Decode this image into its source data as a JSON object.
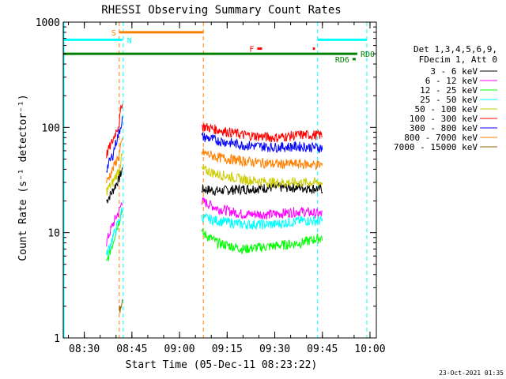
{
  "chart_data": {
    "type": "line",
    "title": "RHESSI Observing Summary Count Rates",
    "xlabel": "Start Time (05-Dec-11 08:23:22)",
    "ylabel": "Count Rate (s⁻¹ detector⁻¹)",
    "y_scale": "log",
    "ylim": [
      1,
      1000
    ],
    "xlim_minutes_clock": [
      "08:23:22",
      "10:02:00"
    ],
    "x_tick_labels": [
      "08:30",
      "08:45",
      "09:00",
      "09:15",
      "09:30",
      "09:45",
      "10:00"
    ],
    "y_tick_labels": [
      "1",
      "10",
      "100",
      "1000"
    ],
    "legend_header": [
      "Det 1,3,4,5,6,9,",
      "FDecim 1, Att 0"
    ],
    "series": [
      {
        "name": "3 - 6 keV",
        "color": "#000000",
        "segments": [
          {
            "t": [
              "08:37",
              "08:39",
              "08:41",
              "08:42"
            ],
            "y": [
              20,
              25,
              33,
              40
            ]
          },
          {
            "t": [
              "09:07",
              "09:12",
              "09:20",
              "09:30",
              "09:38",
              "09:45"
            ],
            "y": [
              26,
              25,
              26,
              27,
              27,
              26
            ]
          }
        ]
      },
      {
        "name": "6 - 12 keV",
        "color": "#ff00ff",
        "segments": [
          {
            "t": [
              "08:37",
              "08:39",
              "08:41",
              "08:42"
            ],
            "y": [
              8,
              12,
              16,
              20
            ]
          },
          {
            "t": [
              "09:07",
              "09:12",
              "09:20",
              "09:30",
              "09:38",
              "09:45"
            ],
            "y": [
              20,
              17,
              15,
              15,
              16,
              15
            ]
          }
        ]
      },
      {
        "name": "12 - 25 keV",
        "color": "#00ff00",
        "segments": [
          {
            "t": [
              "08:37",
              "08:39",
              "08:41",
              "08:42"
            ],
            "y": [
              5,
              8,
              13,
              17
            ]
          },
          {
            "t": [
              "09:07",
              "09:12",
              "09:20",
              "09:30",
              "09:38",
              "09:45"
            ],
            "y": [
              10,
              8,
              7,
              7.5,
              8,
              9
            ]
          }
        ]
      },
      {
        "name": "25 - 50 keV",
        "color": "#00ffff",
        "segments": [
          {
            "t": [
              "08:37",
              "08:39",
              "08:41",
              "08:42"
            ],
            "y": [
              6,
              9,
              13,
              17
            ]
          },
          {
            "t": [
              "09:07",
              "09:12",
              "09:20",
              "09:30",
              "09:38",
              "09:45"
            ],
            "y": [
              14,
              13,
              12,
              12,
              13,
              13
            ]
          }
        ]
      },
      {
        "name": "50 - 100 keV",
        "color": "#cccc00",
        "segments": [
          {
            "t": [
              "08:37",
              "08:39",
              "08:41",
              "08:42"
            ],
            "y": [
              25,
              30,
              40,
              55
            ]
          },
          {
            "t": [
              "09:07",
              "09:12",
              "09:20",
              "09:30",
              "09:38",
              "09:45"
            ],
            "y": [
              40,
              36,
              32,
              30,
              30,
              30
            ]
          }
        ]
      },
      {
        "name": "100 - 300 keV",
        "color": "#ff0000",
        "segments": [
          {
            "t": [
              "08:37",
              "08:39",
              "08:41",
              "08:42"
            ],
            "y": [
              55,
              75,
              110,
              180
            ]
          },
          {
            "t": [
              "09:07",
              "09:12",
              "09:20",
              "09:30",
              "09:38",
              "09:45"
            ],
            "y": [
              103,
              95,
              85,
              80,
              85,
              85
            ]
          }
        ]
      },
      {
        "name": "300 - 800 keV",
        "color": "#0000ff",
        "segments": [
          {
            "t": [
              "08:37",
              "08:39",
              "08:41",
              "08:42"
            ],
            "y": [
              40,
              55,
              90,
              120
            ]
          },
          {
            "t": [
              "09:07",
              "09:12",
              "09:20",
              "09:30",
              "09:38",
              "09:45"
            ],
            "y": [
              82,
              75,
              68,
              65,
              66,
              64
            ]
          }
        ]
      },
      {
        "name": "800 - 7000 keV",
        "color": "#ff8000",
        "segments": [
          {
            "t": [
              "08:37",
              "08:39",
              "08:41",
              "08:42"
            ],
            "y": [
              30,
              40,
              55,
              75
            ]
          },
          {
            "t": [
              "09:07",
              "09:12",
              "09:20",
              "09:30",
              "09:38",
              "09:45"
            ],
            "y": [
              58,
              52,
              48,
              45,
              45,
              44
            ]
          }
        ]
      },
      {
        "name": "7000 - 15000 keV",
        "color": "#996600",
        "segments": [
          {
            "t": [
              "08:41",
              "08:42"
            ],
            "y": [
              1.8,
              2.2
            ]
          }
        ]
      }
    ],
    "flag_bars": [
      {
        "label": "S",
        "color": "#ff8000",
        "t_start": "08:41:00",
        "t_end": "09:07:30",
        "level": 800
      },
      {
        "label": "N",
        "color": "#00ffff",
        "t_start": "08:23:22",
        "t_end": "08:42:00",
        "level": 680
      },
      {
        "label": "",
        "color": "#00ffff",
        "t_start": "09:43:30",
        "t_end": "09:59:00",
        "level": 680
      },
      {
        "label": "F",
        "color": "#ff0000",
        "t_start": "09:24:30",
        "t_end": "09:26:00",
        "level": 560
      },
      {
        "label": "",
        "color": "#ff0000",
        "t_start": "09:42:00",
        "t_end": "09:42:40",
        "level": 560
      },
      {
        "label": "RD0",
        "color": "#008000",
        "t_start": "08:23:22",
        "t_end": "09:56:00",
        "level": 500
      },
      {
        "label": "RD6",
        "color": "#008000",
        "t_start": "09:54:30",
        "t_end": "09:55:30",
        "level": 445
      }
    ],
    "vertical_markers": [
      {
        "t": "08:41:00",
        "color": "#ff8000"
      },
      {
        "t": "08:42:15",
        "color": "#00ffff"
      },
      {
        "t": "09:07:30",
        "color": "#ff8000"
      },
      {
        "t": "09:43:30",
        "color": "#00ffff"
      },
      {
        "t": "09:59:00",
        "color": "#00ffff"
      }
    ],
    "grid": false
  },
  "timestamp": "23-Oct-2021 01:35"
}
